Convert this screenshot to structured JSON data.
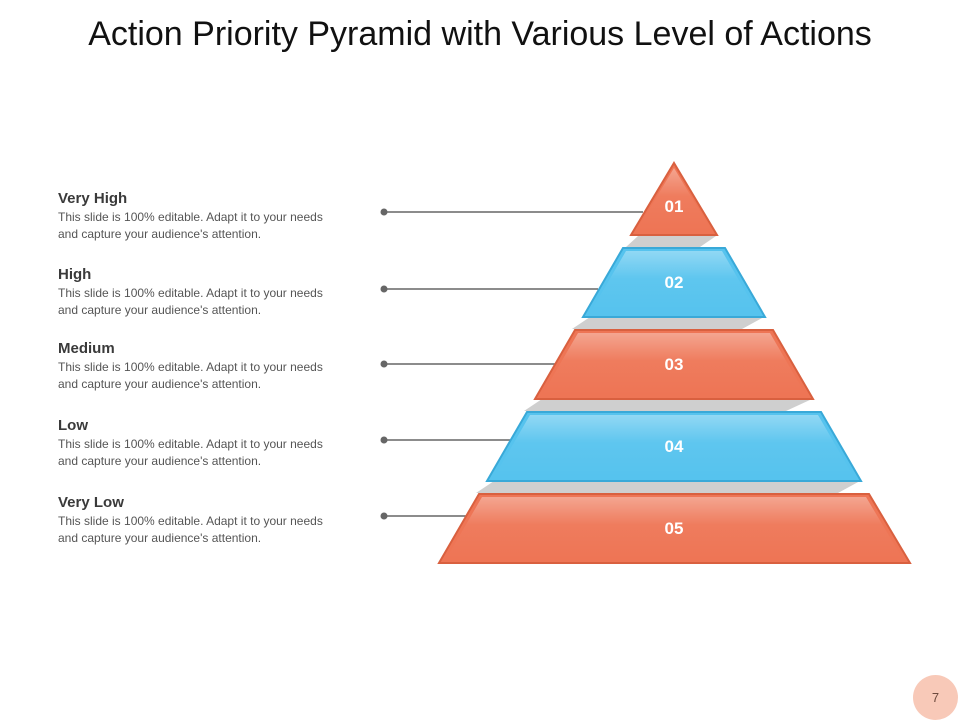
{
  "title": "Action Priority Pyramid with Various Level of Actions",
  "levels": [
    {
      "name": "Very High",
      "desc1": "This slide is 100% editable. Adapt it to your needs",
      "desc2": "and capture your audience's attention.",
      "number": "01",
      "color": "orange"
    },
    {
      "name": "High",
      "desc1": "This slide is 100% editable. Adapt it to your needs",
      "desc2": "and capture your audience's attention.",
      "number": "02",
      "color": "blue"
    },
    {
      "name": "Medium",
      "desc1": "This slide is 100% editable. Adapt it to your needs",
      "desc2": "and capture your audience's attention.",
      "number": "03",
      "color": "orange"
    },
    {
      "name": "Low",
      "desc1": "This slide is 100% editable. Adapt it to your needs",
      "desc2": "and capture your audience's attention.",
      "number": "04",
      "color": "blue"
    },
    {
      "name": "Very Low",
      "desc1": "This slide is 100% editable. Adapt it to your needs",
      "desc2": "and capture your audience's attention.",
      "number": "05",
      "color": "orange"
    }
  ],
  "colors": {
    "orange": "#ee7555",
    "orange_edge": "#d9603f",
    "blue": "#56c3ee",
    "blue_edge": "#39a9d8",
    "shadow": "#c9c9c9",
    "connector": "#666666"
  },
  "page_number": "7"
}
